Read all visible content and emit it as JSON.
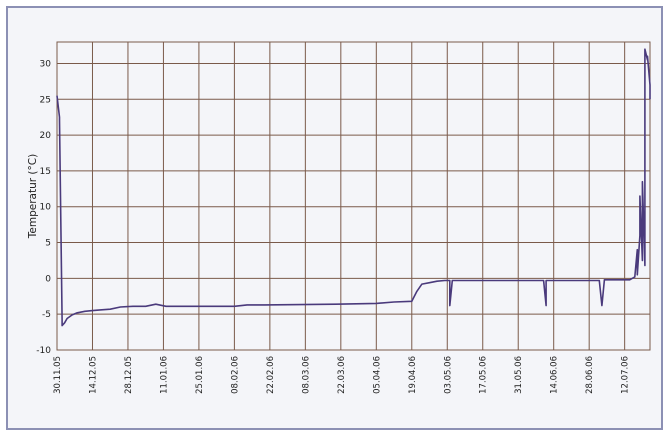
{
  "chart_data": {
    "type": "line",
    "title": "",
    "xlabel": "",
    "ylabel": "Temperatur (°C)",
    "ylim": [
      -10,
      33
    ],
    "yticks": [
      30,
      25,
      20,
      15,
      10,
      5,
      0,
      -5,
      -10
    ],
    "x_tick_labels": [
      "30.11.05",
      "14.12.05",
      "28.12.05",
      "11.01.06",
      "25.01.06",
      "08.02.06",
      "22.02.06",
      "08.03.06",
      "22.03.06",
      "05.04.06",
      "19.04.06",
      "03.05.06",
      "17.05.06",
      "31.05.06",
      "14.06.06",
      "28.06.06",
      "12.07.06"
    ],
    "xlim": [
      "2005-11-30",
      "2006-07-22"
    ],
    "grid": true,
    "colors": {
      "line": "#4a3a7c",
      "grid": "#7a5a4a",
      "frame": "#8c90b4"
    },
    "series": [
      {
        "values": [
          [
            "2005-11-30",
            25.5
          ],
          [
            "2005-12-01",
            22.5
          ],
          [
            "2005-12-01",
            22.3
          ],
          [
            "2005-12-01",
            22.1
          ],
          [
            "2005-12-02",
            -5.8
          ],
          [
            "2005-12-02",
            -6.6
          ],
          [
            "2005-12-03",
            -6.2
          ],
          [
            "2005-12-04",
            -5.6
          ],
          [
            "2005-12-06",
            -5.1
          ],
          [
            "2005-12-08",
            -4.8
          ],
          [
            "2005-12-11",
            -4.6
          ],
          [
            "2005-12-14",
            -4.5
          ],
          [
            "2005-12-17",
            -4.4
          ],
          [
            "2005-12-21",
            -4.3
          ],
          [
            "2005-12-25",
            -4.0
          ],
          [
            "2005-12-30",
            -3.9
          ],
          [
            "2006-01-04",
            -3.9
          ],
          [
            "2006-01-08",
            -3.6
          ],
          [
            "2006-01-12",
            -3.9
          ],
          [
            "2006-02-08",
            -3.9
          ],
          [
            "2006-02-13",
            -3.7
          ],
          [
            "2006-02-20",
            -3.7
          ],
          [
            "2006-03-20",
            -3.6
          ],
          [
            "2006-04-05",
            -3.5
          ],
          [
            "2006-04-12",
            -3.3
          ],
          [
            "2006-04-19",
            -3.2
          ],
          [
            "2006-04-21",
            -1.8
          ],
          [
            "2006-04-23",
            -0.8
          ],
          [
            "2006-04-26",
            -0.6
          ],
          [
            "2006-04-29",
            -0.4
          ],
          [
            "2006-05-02",
            -0.3
          ],
          [
            "2006-05-04",
            -0.3
          ],
          [
            "2006-05-04",
            -3.8
          ],
          [
            "2006-05-05",
            -0.3
          ],
          [
            "2006-05-20",
            -0.3
          ],
          [
            "2006-06-10",
            -0.3
          ],
          [
            "2006-06-11",
            -3.8
          ],
          [
            "2006-06-11",
            -0.3
          ],
          [
            "2006-07-02",
            -0.3
          ],
          [
            "2006-07-03",
            -3.8
          ],
          [
            "2006-07-04",
            -0.2
          ],
          [
            "2006-07-14",
            -0.2
          ],
          [
            "2006-07-16",
            0.2
          ],
          [
            "2006-07-17",
            4.0
          ],
          [
            "2006-07-17",
            0.5
          ],
          [
            "2006-07-18",
            6.0
          ],
          [
            "2006-07-18",
            11.5
          ],
          [
            "2006-07-19",
            2.5
          ],
          [
            "2006-07-19",
            8.0
          ],
          [
            "2006-07-19",
            13.5
          ],
          [
            "2006-07-20",
            1.8
          ],
          [
            "2006-07-20",
            26.0
          ],
          [
            "2006-07-20",
            32.0
          ],
          [
            "2006-07-21",
            30.5
          ],
          [
            "2006-07-21",
            31.0
          ],
          [
            "2006-07-22",
            27.0
          ],
          [
            "2006-07-22",
            25.0
          ]
        ]
      }
    ]
  }
}
